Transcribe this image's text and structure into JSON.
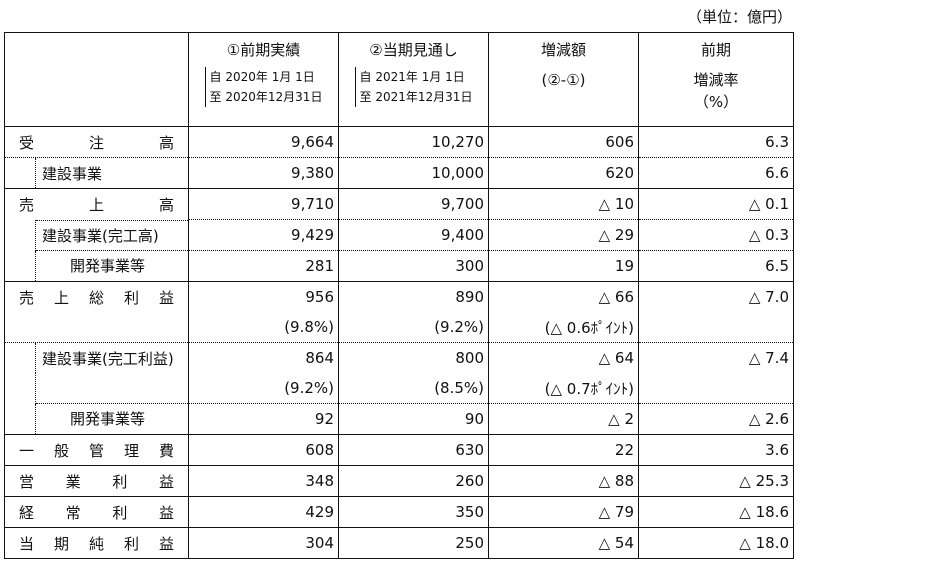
{
  "unit": "（単位：億円）",
  "header": {
    "col1_title": "①前期実績",
    "col1_period_from": "自 2020年  1月  1日",
    "col1_period_to": "至 2020年12月31日",
    "col2_title": "②当期見通し",
    "col2_period_from": "自 2021年  1月  1日",
    "col2_period_to": "至 2021年12月31日",
    "col3_title": "増減額",
    "col3_sub": "(②-①)",
    "col4_title": "前期",
    "col4_sub1": "増減率",
    "col4_sub2": "（%）"
  },
  "rows": [
    {
      "label": "受注高",
      "v1": "9,664",
      "v2": "10,270",
      "v3": "606",
      "v4": "6.3"
    },
    {
      "label": "建設事業",
      "v1": "9,380",
      "v2": "10,000",
      "v3": "620",
      "v4": "6.6"
    },
    {
      "label": "売上高",
      "v1": "9,710",
      "v2": "9,700",
      "v3": "△ 10",
      "v4": "△ 0.1"
    },
    {
      "label": "建設事業(完工高)",
      "v1": "9,429",
      "v2": "9,400",
      "v3": "△ 29",
      "v4": "△ 0.3"
    },
    {
      "label": "開発事業等",
      "v1": "281",
      "v2": "300",
      "v3": "19",
      "v4": "6.5"
    },
    {
      "label": "売上総利益",
      "v1": "956",
      "v2": "890",
      "v3": "△ 66",
      "v4": "△ 7.0",
      "p1": "(9.8%)",
      "p2": "(9.2%)",
      "p3": "(△ 0.6ﾎﾟｲﾝﾄ)"
    },
    {
      "label": "建設事業(完工利益)",
      "v1": "864",
      "v2": "800",
      "v3": "△ 64",
      "v4": "△ 7.4",
      "p1": "(9.2%)",
      "p2": "(8.5%)",
      "p3": "(△ 0.7ﾎﾟｲﾝﾄ)"
    },
    {
      "label": "開発事業等",
      "v1": "92",
      "v2": "90",
      "v3": "△ 2",
      "v4": "△ 2.6"
    },
    {
      "label": "一般管理費",
      "v1": "608",
      "v2": "630",
      "v3": "22",
      "v4": "3.6"
    },
    {
      "label": "営業利益",
      "v1": "348",
      "v2": "260",
      "v3": "△ 88",
      "v4": "△ 25.3"
    },
    {
      "label": "経常利益",
      "v1": "429",
      "v2": "350",
      "v3": "△ 79",
      "v4": "△ 18.6"
    },
    {
      "label": "当期純利益",
      "v1": "304",
      "v2": "250",
      "v3": "△ 54",
      "v4": "△ 18.0"
    }
  ]
}
